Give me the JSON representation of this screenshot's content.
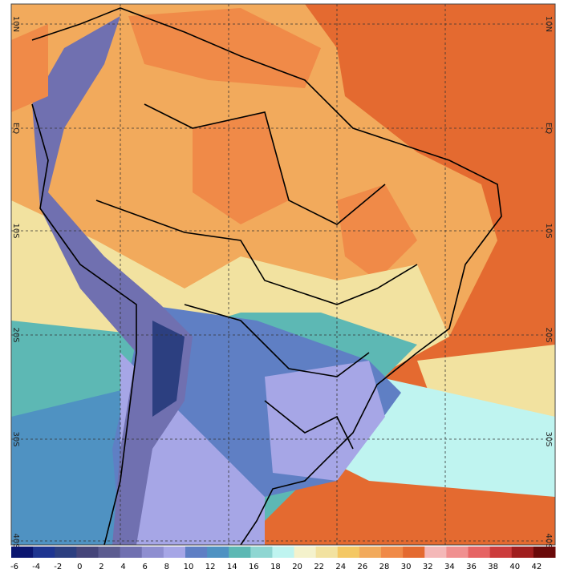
{
  "lat_labels": [
    "10N",
    "EQ",
    "10S",
    "20S",
    "30S",
    "40S"
  ],
  "colorbar": {
    "values": [
      -6,
      -4,
      -2,
      0,
      2,
      4,
      6,
      8,
      10,
      12,
      14,
      16,
      18,
      20,
      22,
      24,
      26,
      28,
      30,
      32,
      34,
      36,
      38,
      40,
      42
    ],
    "colors": [
      "#0b1670",
      "#1e3590",
      "#2c3f80",
      "#45457a",
      "#5c5c90",
      "#7070b0",
      "#8e8ed0",
      "#a6a6e6",
      "#5f7fc4",
      "#4f92c2",
      "#5db8b4",
      "#8fd6d2",
      "#bff4f0",
      "#f4f2cc",
      "#f2e2a0",
      "#f4c864",
      "#f2aa5c",
      "#f08a48",
      "#e46a30",
      "#f4b8b8",
      "#f09090",
      "#e66464",
      "#cc3c3c",
      "#a01e1e",
      "#6a0a0a"
    ]
  }
}
